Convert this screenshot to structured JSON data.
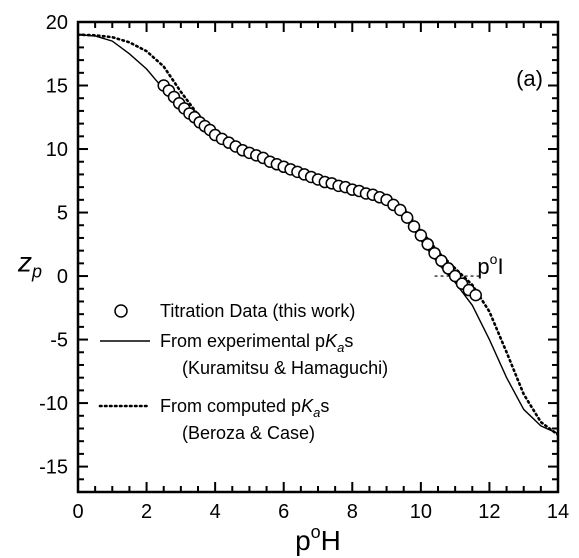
{
  "chart_data": {
    "type": "line",
    "panel_label": "(a)",
    "xlabel": {
      "main": "p",
      "sup": "o",
      "tail": "H"
    },
    "ylabel": {
      "main": "z",
      "sub": "p"
    },
    "xlim": [
      0,
      14
    ],
    "ylim": [
      -17,
      20
    ],
    "x_ticks": [
      0,
      2,
      4,
      6,
      8,
      10,
      12,
      14
    ],
    "y_ticks": [
      -15,
      -10,
      -5,
      0,
      5,
      10,
      15,
      20
    ],
    "x_tick_labels": [
      "0",
      "2",
      "4",
      "6",
      "8",
      "10",
      "12",
      "14"
    ],
    "y_tick_labels": [
      "-15",
      "-10",
      "-5",
      "0",
      "5",
      "10",
      "15",
      "20"
    ],
    "pI": {
      "main": "p",
      "sup": "o",
      "tail": "I",
      "x": 11.3,
      "y": 0
    },
    "legend": [
      {
        "marker": "circle",
        "parts": [
          {
            "t": "Titration Data (this work)"
          }
        ]
      },
      {
        "marker": "solid",
        "parts": [
          {
            "t": "From experimental p"
          },
          {
            "t": "K",
            "italic": true
          },
          {
            "t": "a",
            "italic": true,
            "sub": true
          },
          {
            "t": "s"
          }
        ],
        "line2": "(Kuramitsu & Hamaguchi)"
      },
      {
        "marker": "dotted",
        "parts": [
          {
            "t": "From computed p"
          },
          {
            "t": "K",
            "italic": true
          },
          {
            "t": "a",
            "italic": true,
            "sub": true
          },
          {
            "t": "s"
          }
        ],
        "line2": "(Beroza & Case)"
      }
    ],
    "series": [
      {
        "style": "solid",
        "x": [
          0,
          0.5,
          1.0,
          1.5,
          2.0,
          2.5,
          3.0,
          3.5,
          4.0,
          4.5,
          5.0,
          5.5,
          6.0,
          6.5,
          7.0,
          7.5,
          8.0,
          8.5,
          9.0,
          9.5,
          10.0,
          10.5,
          11.0,
          11.5,
          12.0,
          12.5,
          13.0,
          13.5,
          14.0
        ],
        "y": [
          19.0,
          18.9,
          18.5,
          17.5,
          16.3,
          14.7,
          13.3,
          12.2,
          11.0,
          10.3,
          9.7,
          9.1,
          8.5,
          8.0,
          7.5,
          7.2,
          6.9,
          6.5,
          6.0,
          4.8,
          2.8,
          1.0,
          -0.5,
          -2.3,
          -5.0,
          -8.0,
          -10.5,
          -11.8,
          -12.4
        ]
      },
      {
        "style": "dotted",
        "x": [
          0,
          0.5,
          1.0,
          1.5,
          2.0,
          2.5,
          3.0,
          3.5,
          4.0,
          4.5,
          5.0,
          5.5,
          6.0,
          6.5,
          7.0,
          7.5,
          8.0,
          8.5,
          9.0,
          9.5,
          10.0,
          10.5,
          11.0,
          11.5,
          12.0,
          12.5,
          13.0,
          13.5,
          14.0
        ],
        "y": [
          19.0,
          18.95,
          18.8,
          18.4,
          17.7,
          16.5,
          14.5,
          12.7,
          11.4,
          10.6,
          9.9,
          9.3,
          8.7,
          8.1,
          7.6,
          7.2,
          6.9,
          6.6,
          6.2,
          5.3,
          3.6,
          1.9,
          0.6,
          -0.7,
          -2.8,
          -6.0,
          -9.3,
          -11.5,
          -12.5
        ]
      }
    ],
    "scatter": {
      "marker": "circle",
      "x": [
        2.5,
        2.65,
        2.8,
        2.95,
        3.1,
        3.25,
        3.4,
        3.55,
        3.7,
        3.85,
        4.0,
        4.2,
        4.4,
        4.6,
        4.8,
        5.0,
        5.2,
        5.4,
        5.6,
        5.8,
        6.0,
        6.2,
        6.4,
        6.6,
        6.8,
        7.0,
        7.2,
        7.4,
        7.6,
        7.8,
        8.0,
        8.2,
        8.4,
        8.6,
        8.8,
        9.0,
        9.2,
        9.4,
        9.6,
        9.8,
        10.0,
        10.2,
        10.4,
        10.6,
        10.8,
        11.0,
        11.2,
        11.4,
        11.6
      ],
      "y": [
        15.0,
        14.6,
        14.1,
        13.6,
        13.2,
        12.8,
        12.5,
        12.1,
        11.8,
        11.5,
        11.1,
        10.8,
        10.5,
        10.2,
        9.9,
        9.7,
        9.5,
        9.3,
        9.0,
        8.8,
        8.6,
        8.4,
        8.2,
        8.0,
        7.8,
        7.6,
        7.4,
        7.3,
        7.1,
        7.0,
        6.8,
        6.7,
        6.5,
        6.4,
        6.2,
        6.0,
        5.6,
        5.2,
        4.6,
        3.9,
        3.2,
        2.5,
        1.8,
        1.2,
        0.6,
        0.0,
        -0.6,
        -1.1,
        -1.5
      ]
    }
  }
}
